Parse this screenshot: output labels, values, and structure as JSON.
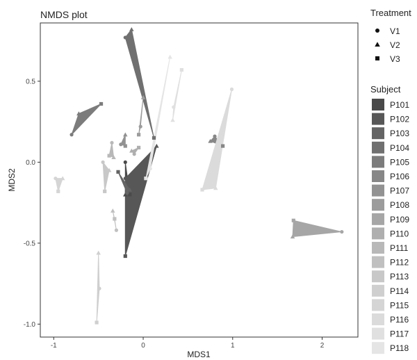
{
  "chart_data": {
    "type": "scatter",
    "title": "NMDS plot",
    "xlabel": "MDS1",
    "ylabel": "MDS2",
    "xlim": [
      -1.15,
      2.4
    ],
    "ylim": [
      -1.08,
      0.86
    ],
    "x_ticks": [
      -1,
      0,
      1,
      2
    ],
    "y_ticks": [
      -1.0,
      -0.5,
      0.0,
      0.5
    ],
    "grid": false,
    "legend_placement": "right",
    "treatment_legend": {
      "title": "Treatment",
      "items": [
        {
          "label": "V1",
          "shape": "circle"
        },
        {
          "label": "V2",
          "shape": "triangle"
        },
        {
          "label": "V3",
          "shape": "square"
        }
      ]
    },
    "subject_legend": {
      "title": "Subject",
      "items": [
        {
          "label": "P101",
          "color": "#4a4a4a"
        },
        {
          "label": "P102",
          "color": "#575757"
        },
        {
          "label": "P103",
          "color": "#646464"
        },
        {
          "label": "P104",
          "color": "#707070"
        },
        {
          "label": "P105",
          "color": "#7c7c7c"
        },
        {
          "label": "P106",
          "color": "#878787"
        },
        {
          "label": "P107",
          "color": "#929292"
        },
        {
          "label": "P108",
          "color": "#9c9c9c"
        },
        {
          "label": "P109",
          "color": "#a6a6a6"
        },
        {
          "label": "P110",
          "color": "#afafaf"
        },
        {
          "label": "P111",
          "color": "#b8b8b8"
        },
        {
          "label": "P112",
          "color": "#c0c0c0"
        },
        {
          "label": "P113",
          "color": "#c8c8c8"
        },
        {
          "label": "P114",
          "color": "#cfcfcf"
        },
        {
          "label": "P115",
          "color": "#d5d5d5"
        },
        {
          "label": "P116",
          "color": "#dbdbdb"
        },
        {
          "label": "P117",
          "color": "#e0e0e0"
        },
        {
          "label": "P118",
          "color": "#e5e5e5"
        }
      ]
    },
    "series": [
      {
        "name": "P101",
        "points": [
          [
            -0.2,
            0.0
          ],
          [
            -0.2,
            -0.2
          ],
          [
            -0.15,
            -0.2
          ]
        ]
      },
      {
        "name": "P102",
        "points": [
          [
            -0.2,
            -0.1
          ],
          [
            0.15,
            0.1
          ],
          [
            -0.2,
            -0.58
          ]
        ]
      },
      {
        "name": "P103",
        "points": [
          [
            -0.18,
            -0.19
          ],
          [
            -0.15,
            -0.17
          ],
          [
            -0.28,
            -0.06
          ]
        ]
      },
      {
        "name": "P104",
        "points": [
          [
            -0.2,
            0.77
          ],
          [
            -0.13,
            0.82
          ],
          [
            0.12,
            0.15
          ]
        ]
      },
      {
        "name": "P105",
        "points": [
          [
            -0.8,
            0.17
          ],
          [
            -0.72,
            0.3
          ],
          [
            -0.47,
            0.36
          ]
        ]
      },
      {
        "name": "P106",
        "points": [
          [
            0.8,
            0.16
          ],
          [
            0.75,
            0.13
          ],
          [
            0.89,
            0.1
          ]
        ]
      },
      {
        "name": "P107",
        "points": [
          [
            -0.25,
            0.11
          ],
          [
            -0.2,
            0.17
          ],
          [
            -0.2,
            0.1
          ]
        ]
      },
      {
        "name": "P108",
        "points": [
          [
            -0.03,
            0.22
          ],
          [
            0.0,
            0.4
          ],
          [
            -0.05,
            0.17
          ]
        ]
      },
      {
        "name": "P109",
        "points": [
          [
            2.22,
            -0.43
          ],
          [
            1.67,
            -0.46
          ],
          [
            1.68,
            -0.36
          ]
        ]
      },
      {
        "name": "P110",
        "points": [
          [
            -0.1,
            0.05
          ],
          [
            -0.13,
            0.07
          ],
          [
            -0.05,
            0.09
          ]
        ]
      },
      {
        "name": "P111",
        "points": [
          [
            -0.35,
            0.12
          ],
          [
            -0.33,
            0.03
          ],
          [
            -0.38,
            0.04
          ]
        ]
      },
      {
        "name": "P112",
        "points": [
          [
            -0.3,
            -0.42
          ],
          [
            -0.34,
            -0.3
          ],
          [
            -0.32,
            -0.35
          ]
        ]
      },
      {
        "name": "P113",
        "points": [
          [
            -0.45,
            0.0
          ],
          [
            -0.38,
            -0.05
          ],
          [
            -0.43,
            -0.18
          ]
        ]
      },
      {
        "name": "P114",
        "points": [
          [
            -0.49,
            -0.78
          ],
          [
            -0.5,
            -0.56
          ],
          [
            -0.52,
            -0.99
          ]
        ]
      },
      {
        "name": "P115",
        "points": [
          [
            -0.98,
            -0.1
          ],
          [
            -0.9,
            -0.1
          ],
          [
            -0.95,
            -0.18
          ]
        ]
      },
      {
        "name": "P116",
        "points": [
          [
            0.99,
            0.45
          ],
          [
            0.81,
            -0.16
          ],
          [
            0.66,
            -0.17
          ]
        ]
      },
      {
        "name": "P117",
        "points": [
          [
            0.34,
            0.34
          ],
          [
            0.33,
            0.26
          ],
          [
            0.43,
            0.57
          ]
        ]
      },
      {
        "name": "P118",
        "points": [
          [
            0.08,
            -0.04
          ],
          [
            0.3,
            0.65
          ],
          [
            0.03,
            -0.1
          ]
        ]
      }
    ]
  }
}
